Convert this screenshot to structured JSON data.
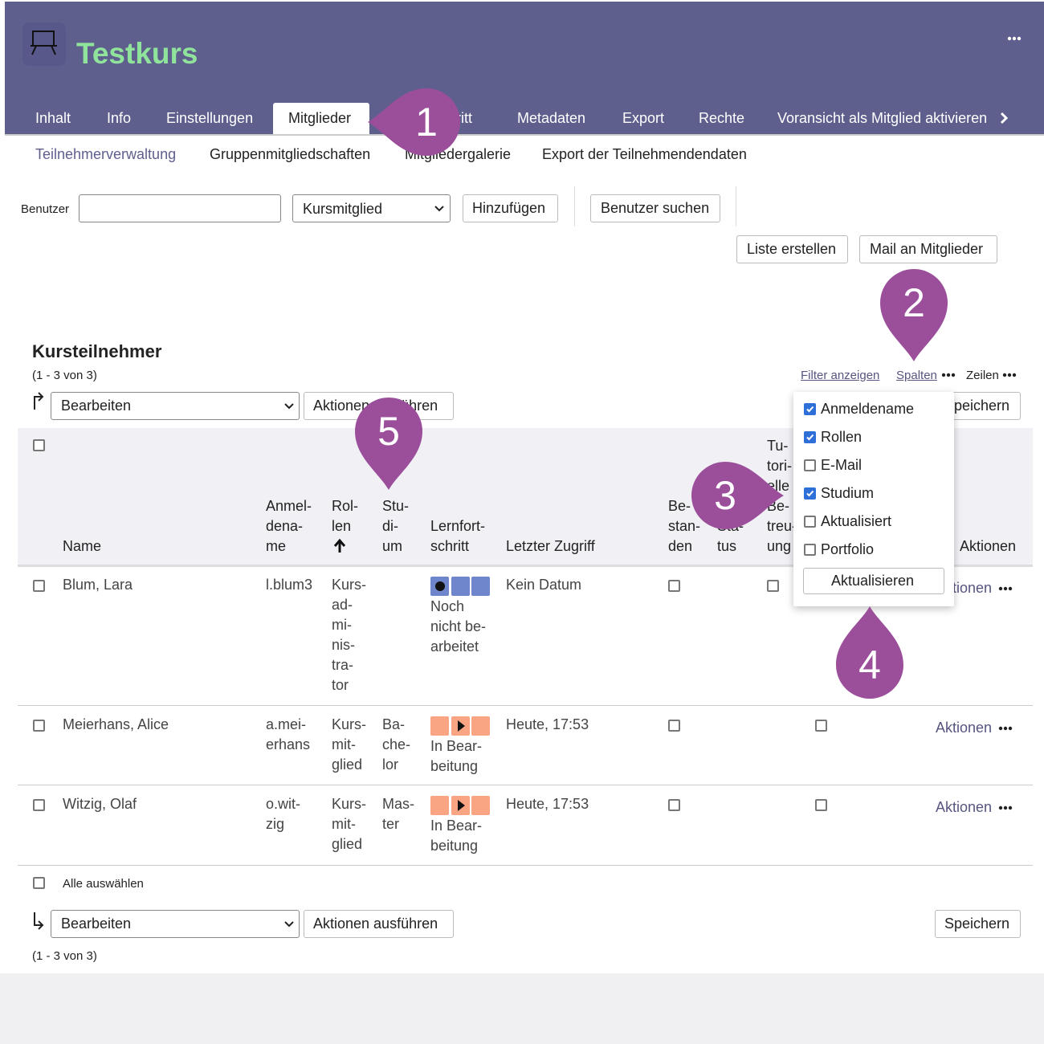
{
  "header": {
    "title": "Testkurs",
    "tabs": [
      "Inhalt",
      "Info",
      "Einstellungen",
      "Mitglieder",
      "Lernfortschritt",
      "Metadaten",
      "Export",
      "Rechte",
      "Voransicht als Mitglied aktivieren"
    ],
    "active_tab": 3
  },
  "subtabs": {
    "items": [
      "Teilnehmerverwaltung",
      "Gruppenmitgliedschaften",
      "Mitgliedergalerie",
      "Export der Teilnehmendendaten"
    ],
    "active": 0
  },
  "form": {
    "user_label": "Benutzer",
    "role_select": "Kursmitglied",
    "add": "Hinzufügen",
    "search": "Benutzer suchen",
    "create_list": "Liste erstellen",
    "mail": "Mail an Mitglieder"
  },
  "table": {
    "title": "Kursteilnehmer",
    "count": "(1 - 3 von 3)",
    "filter": "Filter anzeigen",
    "columns_link": "Spalten",
    "rows_link": "Zeilen",
    "bulk_select": "Bearbeiten",
    "run": "Aktionen ausführen",
    "save": "Speichern",
    "headers": [
      "Name",
      "Anmel-\ndena-\nme",
      "Rol-\nlen",
      "Stu-\ndi-\num",
      "Lernfort-\nschritt",
      "Letzter Zugriff",
      "Be-\nstan-\nden",
      "Sta-\ntus",
      "Tu-\ntori-\nelle\nBe-\ntreu-\nung",
      "Aktionen"
    ],
    "rows": [
      {
        "name": "Blum, Lara",
        "login": "l.blum3",
        "role": "Kurs-\nad-\nmi-\nnis-\ntra-\ntor",
        "study": null,
        "progress": "Noch\nnicht be-\narbeitet",
        "last_access": "Kein Datum"
      },
      {
        "name": "Meierhans, Alice",
        "login": "a.mei-\nerhans",
        "role": "Kurs-\nmit-\nglied",
        "study": "Ba-\nche-\nlor",
        "progress": "In Bear-\nbeitung",
        "last_access": "Heute, 17:53"
      },
      {
        "name": "Witzig, Olaf",
        "login": "o.wit-\nzig",
        "role": "Kurs-\nmit-\nglied",
        "study": "Mas-\nter",
        "progress": "In Bear-\nbeitung",
        "last_access": "Heute, 17:53"
      }
    ],
    "row_action": "Aktionen",
    "select_all": "Alle auswählen"
  },
  "column_menu": {
    "options": [
      {
        "label": "Anmeldename",
        "checked": true
      },
      {
        "label": "Rollen",
        "checked": true
      },
      {
        "label": "E-Mail",
        "checked": false
      },
      {
        "label": "Studium",
        "checked": true
      },
      {
        "label": "Aktualisiert",
        "checked": false
      },
      {
        "label": "Portfolio",
        "checked": false
      }
    ],
    "apply": "Aktualisieren"
  },
  "markers": [
    "1",
    "2",
    "3",
    "4",
    "5"
  ]
}
